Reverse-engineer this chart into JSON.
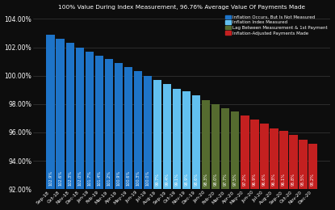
{
  "title": "100% Value During Index Measurement, 96.76% Average Value Of Payments Made",
  "categories": [
    "Sep-18",
    "Oct-18",
    "Nov-18",
    "Dec-18",
    "Jan-19",
    "Feb-19",
    "Mar-19",
    "Apr-19",
    "May-19",
    "Jun-19",
    "Jul-19",
    "Aug-19",
    "Sep-19",
    "Oct-19",
    "Nov-19",
    "Dec-19",
    "Jan-20",
    "Feb-20",
    "Mar-20",
    "Apr-20",
    "May-20",
    "Jun-20",
    "Jul-20",
    "Aug-20",
    "Sep-20",
    "Oct-20",
    "Nov-20",
    "Dec-20"
  ],
  "values": [
    102.9,
    102.6,
    102.3,
    102.0,
    101.7,
    101.4,
    101.2,
    100.9,
    100.6,
    100.3,
    100.0,
    99.7,
    99.4,
    99.1,
    98.9,
    98.6,
    98.3,
    98.0,
    97.7,
    97.5,
    97.2,
    96.9,
    96.6,
    96.3,
    96.1,
    95.8,
    95.5,
    95.2
  ],
  "segments": [
    {
      "start": 0,
      "end": 11,
      "color": "#1E74C8"
    },
    {
      "start": 11,
      "end": 16,
      "color": "#62C0F0"
    },
    {
      "start": 16,
      "end": 20,
      "color": "#556B2F"
    },
    {
      "start": 20,
      "end": 28,
      "color": "#C42020"
    }
  ],
  "ylim_min": 92.0,
  "ylim_max": 104.5,
  "yticks": [
    92.0,
    94.0,
    96.0,
    98.0,
    100.0,
    102.0,
    104.0
  ],
  "background_color": "#0D0D0D",
  "text_color": "#FFFFFF",
  "grid_color": "#444444",
  "legend_items": [
    {
      "label": "Inflation Occurs, But Is Not Measured",
      "color": "#1E74C8"
    },
    {
      "label": "Inflation Index Measured",
      "color": "#62C0F0"
    },
    {
      "label": "Lag Between Measurement & 1st Payment",
      "color": "#556B2F"
    },
    {
      "label": "Inflation-Adjusted Payments Made",
      "color": "#C42020"
    }
  ]
}
